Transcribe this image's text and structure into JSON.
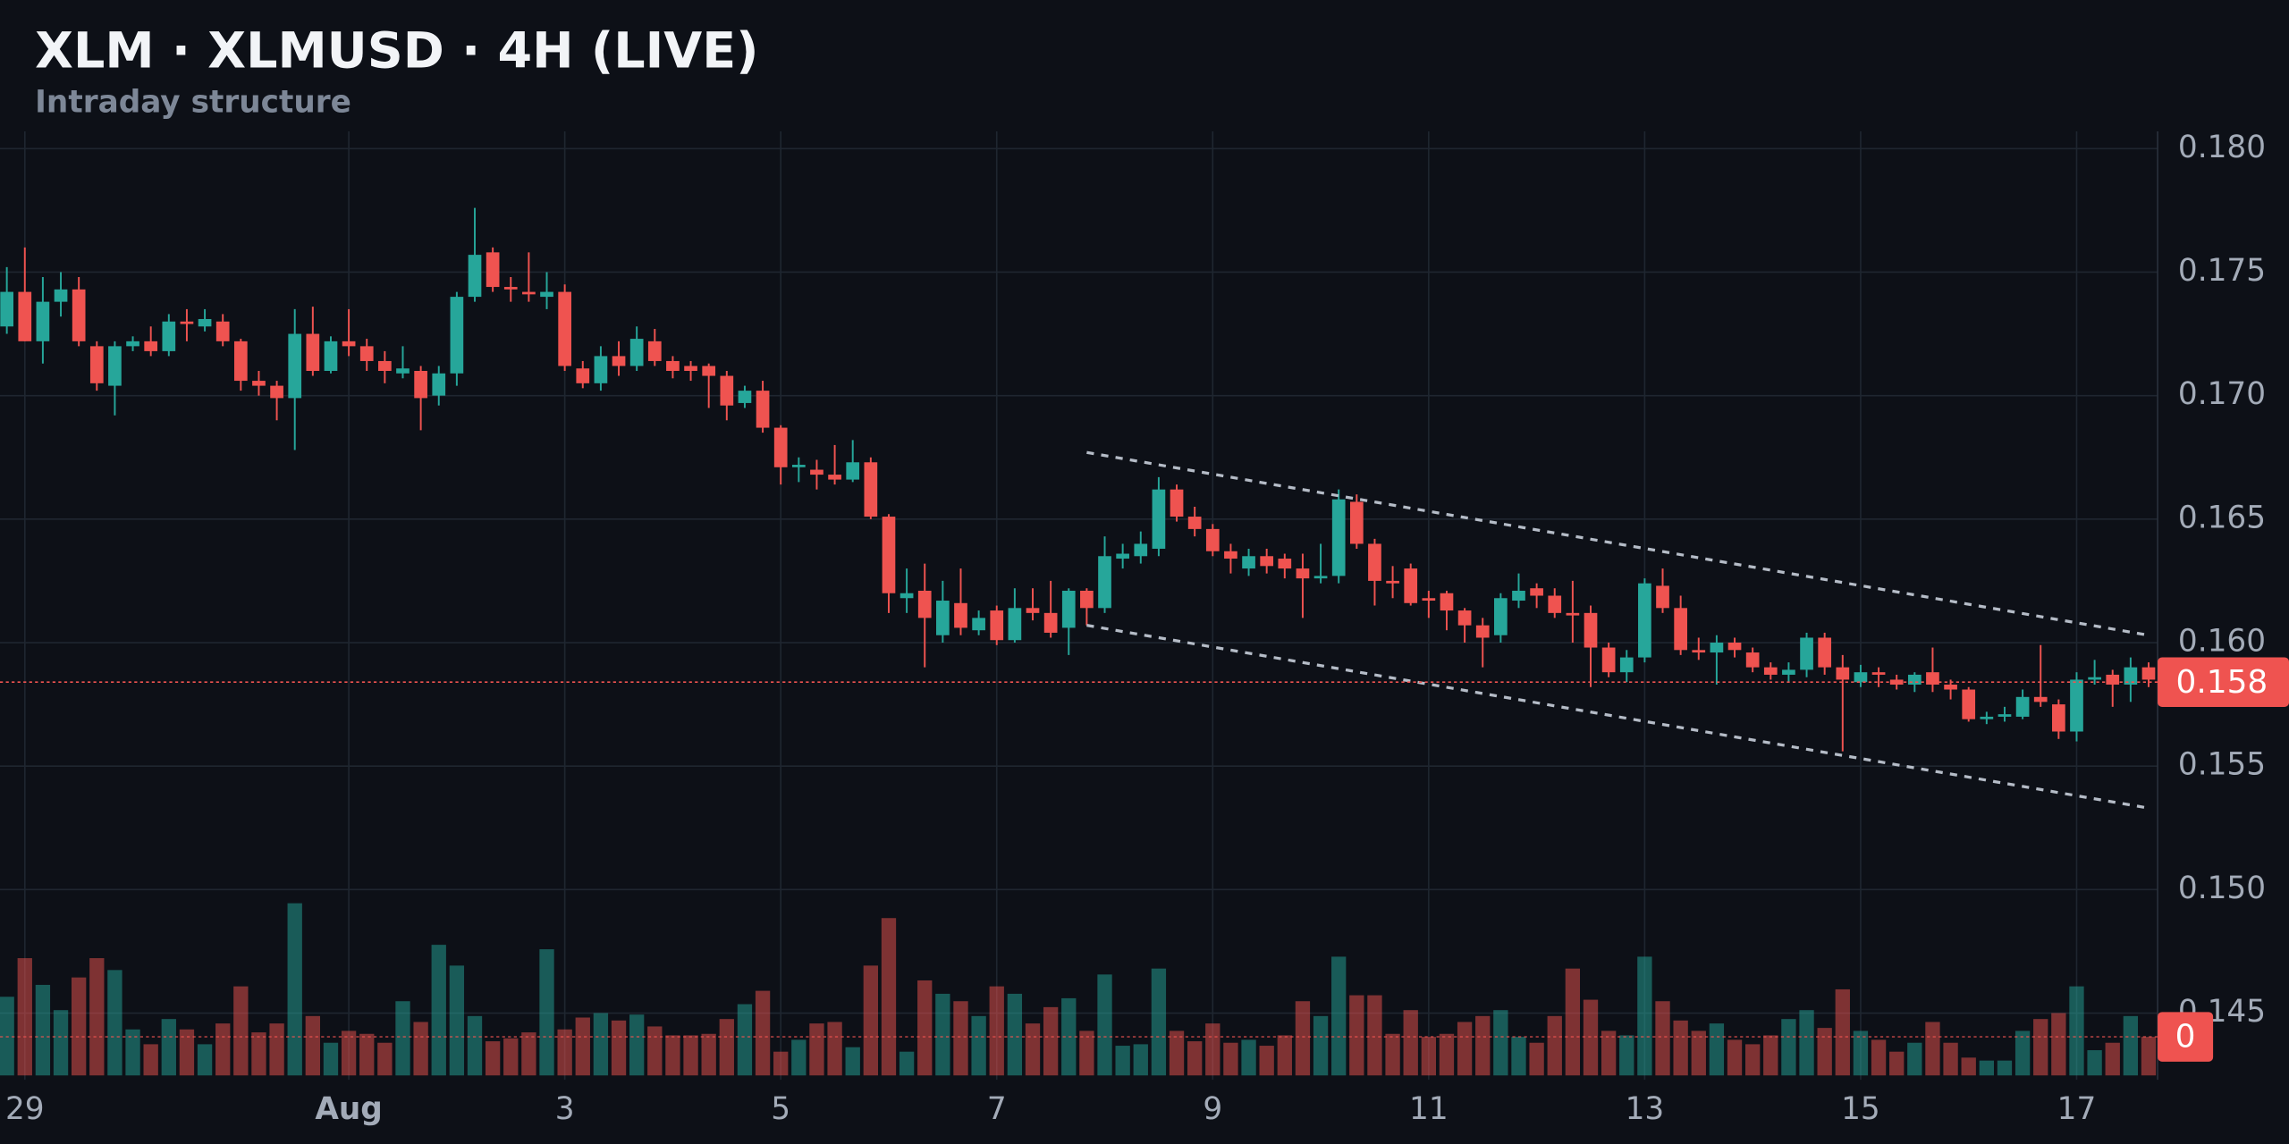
{
  "chart_data": {
    "type": "candlestick",
    "title": "XLM · XLMUSD · 4H (LIVE)",
    "subtitle": "Intraday structure",
    "up_color": "#26a69a",
    "down_color": "#ef5350",
    "grid": true,
    "xlim": [
      -0.38,
      119.5
    ],
    "xticks": [
      {
        "value": 1,
        "label": "29"
      },
      {
        "value": 19,
        "label": "Aug"
      },
      {
        "value": 31,
        "label": "3"
      },
      {
        "value": 43,
        "label": "5"
      },
      {
        "value": 55,
        "label": "7"
      },
      {
        "value": 67,
        "label": "9"
      },
      {
        "value": 79,
        "label": "11"
      },
      {
        "value": 91,
        "label": "13"
      },
      {
        "value": 103,
        "label": "15"
      },
      {
        "value": 115,
        "label": "17"
      }
    ],
    "ylim": [
      0.1423,
      0.1807
    ],
    "yticks": [
      {
        "value": 0.18,
        "label": "0.180"
      },
      {
        "value": 0.175,
        "label": "0.175"
      },
      {
        "value": 0.17,
        "label": "0.170"
      },
      {
        "value": 0.165,
        "label": "0.165"
      },
      {
        "value": 0.16,
        "label": "0.160"
      },
      {
        "value": 0.155,
        "label": "0.155"
      },
      {
        "value": 0.15,
        "label": "0.150"
      },
      {
        "value": 0.145,
        "label": "0.145"
      }
    ],
    "candles": [
      [
        0.1728,
        0.1752,
        0.1725,
        0.1742
      ],
      [
        0.1742,
        0.176,
        0.1722,
        0.1722
      ],
      [
        0.1722,
        0.1748,
        0.1713,
        0.1738
      ],
      [
        0.1738,
        0.175,
        0.1732,
        0.1743
      ],
      [
        0.1743,
        0.1748,
        0.172,
        0.1722
      ],
      [
        0.172,
        0.1722,
        0.1702,
        0.1705
      ],
      [
        0.1704,
        0.1722,
        0.1692,
        0.172
      ],
      [
        0.172,
        0.1724,
        0.1718,
        0.1722
      ],
      [
        0.1722,
        0.1728,
        0.1716,
        0.1718
      ],
      [
        0.1718,
        0.1733,
        0.1716,
        0.173
      ],
      [
        0.173,
        0.1735,
        0.1722,
        0.1729
      ],
      [
        0.1728,
        0.1735,
        0.1726,
        0.1731
      ],
      [
        0.173,
        0.1733,
        0.172,
        0.1722
      ],
      [
        0.1722,
        0.1723,
        0.1702,
        0.1706
      ],
      [
        0.1706,
        0.171,
        0.17,
        0.1704
      ],
      [
        0.1704,
        0.1706,
        0.169,
        0.1699
      ],
      [
        0.1699,
        0.1735,
        0.1678,
        0.1725
      ],
      [
        0.1725,
        0.1736,
        0.1708,
        0.171
      ],
      [
        0.171,
        0.1724,
        0.1709,
        0.1722
      ],
      [
        0.1722,
        0.1735,
        0.1716,
        0.172
      ],
      [
        0.172,
        0.1723,
        0.171,
        0.1714
      ],
      [
        0.1714,
        0.1718,
        0.1705,
        0.171
      ],
      [
        0.1709,
        0.172,
        0.1707,
        0.1711
      ],
      [
        0.171,
        0.1712,
        0.1686,
        0.1699
      ],
      [
        0.17,
        0.1712,
        0.1696,
        0.1709
      ],
      [
        0.1709,
        0.1742,
        0.1704,
        0.174
      ],
      [
        0.174,
        0.1776,
        0.1738,
        0.1757
      ],
      [
        0.1758,
        0.176,
        0.1742,
        0.1744
      ],
      [
        0.1744,
        0.1748,
        0.1738,
        0.1743
      ],
      [
        0.1742,
        0.1758,
        0.1738,
        0.1741
      ],
      [
        0.174,
        0.175,
        0.1735,
        0.1742
      ],
      [
        0.1742,
        0.1745,
        0.171,
        0.1712
      ],
      [
        0.1711,
        0.1714,
        0.1703,
        0.1705
      ],
      [
        0.1705,
        0.172,
        0.1702,
        0.1716
      ],
      [
        0.1716,
        0.1722,
        0.1708,
        0.1712
      ],
      [
        0.1712,
        0.1728,
        0.171,
        0.1723
      ],
      [
        0.1722,
        0.1727,
        0.1712,
        0.1714
      ],
      [
        0.1714,
        0.1716,
        0.1707,
        0.171
      ],
      [
        0.1712,
        0.1714,
        0.1706,
        0.171
      ],
      [
        0.1712,
        0.1713,
        0.1695,
        0.1708
      ],
      [
        0.1708,
        0.171,
        0.169,
        0.1696
      ],
      [
        0.1697,
        0.1704,
        0.1695,
        0.1702
      ],
      [
        0.1702,
        0.1706,
        0.1685,
        0.1687
      ],
      [
        0.1687,
        0.1688,
        0.1664,
        0.1671
      ],
      [
        0.1671,
        0.1675,
        0.1665,
        0.1672
      ],
      [
        0.167,
        0.1674,
        0.1662,
        0.1668
      ],
      [
        0.1668,
        0.168,
        0.1664,
        0.1666
      ],
      [
        0.1666,
        0.1682,
        0.1665,
        0.1673
      ],
      [
        0.1673,
        0.1675,
        0.165,
        0.1651
      ],
      [
        0.1651,
        0.1652,
        0.1612,
        0.162
      ],
      [
        0.1618,
        0.163,
        0.1612,
        0.162
      ],
      [
        0.1621,
        0.1632,
        0.159,
        0.161
      ],
      [
        0.1603,
        0.1625,
        0.16,
        0.1617
      ],
      [
        0.1616,
        0.163,
        0.1603,
        0.1606
      ],
      [
        0.1605,
        0.1613,
        0.1603,
        0.161
      ],
      [
        0.1613,
        0.1615,
        0.1599,
        0.1601
      ],
      [
        0.1601,
        0.1622,
        0.16,
        0.1614
      ],
      [
        0.1614,
        0.1622,
        0.1609,
        0.1612
      ],
      [
        0.1612,
        0.1625,
        0.1602,
        0.1604
      ],
      [
        0.1606,
        0.1622,
        0.1595,
        0.1621
      ],
      [
        0.1621,
        0.1622,
        0.1607,
        0.1614
      ],
      [
        0.1614,
        0.1643,
        0.1612,
        0.1635
      ],
      [
        0.1634,
        0.164,
        0.163,
        0.1636
      ],
      [
        0.1635,
        0.1645,
        0.1632,
        0.164
      ],
      [
        0.1638,
        0.1667,
        0.1635,
        0.1662
      ],
      [
        0.1662,
        0.1664,
        0.1649,
        0.1651
      ],
      [
        0.1651,
        0.1655,
        0.1643,
        0.1646
      ],
      [
        0.1646,
        0.1648,
        0.1635,
        0.1637
      ],
      [
        0.1637,
        0.164,
        0.1628,
        0.1634
      ],
      [
        0.163,
        0.1638,
        0.1627,
        0.1635
      ],
      [
        0.1635,
        0.1638,
        0.1628,
        0.1631
      ],
      [
        0.1634,
        0.1636,
        0.1626,
        0.163
      ],
      [
        0.163,
        0.1636,
        0.161,
        0.1626
      ],
      [
        0.1626,
        0.164,
        0.1624,
        0.1627
      ],
      [
        0.1627,
        0.1662,
        0.1624,
        0.1658
      ],
      [
        0.1657,
        0.166,
        0.1638,
        0.164
      ],
      [
        0.164,
        0.1642,
        0.1615,
        0.1625
      ],
      [
        0.1625,
        0.1631,
        0.1618,
        0.1624
      ],
      [
        0.163,
        0.1632,
        0.1615,
        0.1616
      ],
      [
        0.1618,
        0.1621,
        0.161,
        0.1617
      ],
      [
        0.162,
        0.1621,
        0.1605,
        0.1613
      ],
      [
        0.1613,
        0.1614,
        0.16,
        0.1607
      ],
      [
        0.1607,
        0.161,
        0.159,
        0.1602
      ],
      [
        0.1603,
        0.162,
        0.16,
        0.1618
      ],
      [
        0.1617,
        0.1628,
        0.1614,
        0.1621
      ],
      [
        0.1622,
        0.1624,
        0.1614,
        0.1619
      ],
      [
        0.1619,
        0.1622,
        0.161,
        0.1612
      ],
      [
        0.1612,
        0.1625,
        0.16,
        0.1611
      ],
      [
        0.1612,
        0.1615,
        0.1582,
        0.1598
      ],
      [
        0.1598,
        0.16,
        0.1586,
        0.1588
      ],
      [
        0.1588,
        0.1597,
        0.1584,
        0.1594
      ],
      [
        0.1594,
        0.1626,
        0.1592,
        0.1624
      ],
      [
        0.1623,
        0.163,
        0.1612,
        0.1614
      ],
      [
        0.1614,
        0.1619,
        0.1595,
        0.1597
      ],
      [
        0.1597,
        0.1602,
        0.1593,
        0.1596
      ],
      [
        0.1596,
        0.1603,
        0.1583,
        0.16
      ],
      [
        0.16,
        0.1602,
        0.1594,
        0.1597
      ],
      [
        0.1596,
        0.1598,
        0.1588,
        0.159
      ],
      [
        0.159,
        0.1592,
        0.1585,
        0.1587
      ],
      [
        0.1587,
        0.1592,
        0.1584,
        0.1589
      ],
      [
        0.1589,
        0.1604,
        0.1586,
        0.1602
      ],
      [
        0.1602,
        0.1604,
        0.1587,
        0.159
      ],
      [
        0.159,
        0.1595,
        0.1556,
        0.1585
      ],
      [
        0.1584,
        0.1591,
        0.1582,
        0.1588
      ],
      [
        0.1588,
        0.159,
        0.1582,
        0.1587
      ],
      [
        0.1585,
        0.1587,
        0.1581,
        0.1583
      ],
      [
        0.1583,
        0.1588,
        0.158,
        0.1587
      ],
      [
        0.1588,
        0.1598,
        0.158,
        0.1583
      ],
      [
        0.1583,
        0.1585,
        0.1577,
        0.1581
      ],
      [
        0.1581,
        0.1582,
        0.1568,
        0.1569
      ],
      [
        0.1569,
        0.1572,
        0.1567,
        0.157
      ],
      [
        0.157,
        0.1574,
        0.1568,
        0.1571
      ],
      [
        0.157,
        0.1581,
        0.1569,
        0.1578
      ],
      [
        0.1578,
        0.1599,
        0.1574,
        0.1576
      ],
      [
        0.1575,
        0.1577,
        0.1561,
        0.1564
      ],
      [
        0.1564,
        0.1588,
        0.156,
        0.1585
      ],
      [
        0.1585,
        0.1593,
        0.1583,
        0.1586
      ],
      [
        0.1587,
        0.1589,
        0.1574,
        0.1583
      ],
      [
        0.1583,
        0.1594,
        0.1576,
        0.159
      ],
      [
        0.159,
        0.1592,
        0.1582,
        0.1585
      ]
    ],
    "volumes": [
      53,
      79,
      61,
      44,
      66,
      79,
      71,
      31,
      21,
      38,
      31,
      21,
      35,
      60,
      29,
      35,
      116,
      40,
      22,
      30,
      28,
      22,
      50,
      36,
      88,
      74,
      40,
      23,
      25,
      29,
      85,
      31,
      39,
      42,
      37,
      41,
      33,
      27,
      27,
      28,
      38,
      48,
      57,
      16,
      24,
      35,
      36,
      19,
      74,
      106,
      16,
      64,
      55,
      50,
      40,
      60,
      55,
      35,
      46,
      52,
      30,
      68,
      20,
      21,
      72,
      30,
      23,
      35,
      22,
      24,
      20,
      27,
      50,
      40,
      80,
      54,
      54,
      28,
      44,
      26,
      28,
      36,
      40,
      44,
      26,
      22,
      40,
      72,
      51,
      30,
      27,
      80,
      50,
      37,
      30,
      35,
      24,
      21,
      27,
      38,
      44,
      32,
      58,
      30,
      24,
      16,
      22,
      36,
      22,
      12,
      10,
      10,
      30,
      38,
      42,
      60,
      17,
      22,
      40,
      26
    ],
    "trend_lines": [
      {
        "x": [
          60,
          119
        ],
        "y": [
          0.1677,
          0.1603
        ]
      },
      {
        "x": [
          60,
          119
        ],
        "y": [
          0.1607,
          0.1533
        ]
      }
    ],
    "last_price": {
      "value": 0.1584,
      "label": "0.158"
    },
    "volume_label": "0"
  }
}
